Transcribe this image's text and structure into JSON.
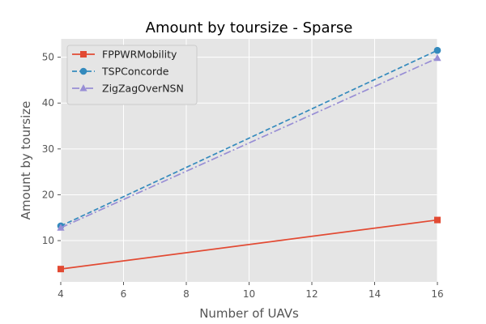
{
  "chart_data": {
    "type": "line",
    "title": "Amount by toursize - Sparse",
    "xlabel": "Number of UAVs",
    "ylabel": "Amount by toursize",
    "x": [
      4,
      16
    ],
    "xlim": [
      4,
      16
    ],
    "ylim": [
      1,
      54
    ],
    "xticks": [
      "4",
      "6",
      "8",
      "10",
      "12",
      "14",
      "16"
    ],
    "yticks": [
      "10",
      "20",
      "30",
      "40",
      "50"
    ],
    "grid": true,
    "legend_position": "top-left",
    "series": [
      {
        "name": "FPPWRMobility",
        "values": [
          3.8,
          14.5
        ],
        "color": "#E24A33",
        "marker": "square",
        "dash": "solid"
      },
      {
        "name": "TSPConcorde",
        "values": [
          13.2,
          51.5
        ],
        "color": "#348ABD",
        "marker": "circle",
        "dash": "dashed"
      },
      {
        "name": "ZigZagOverNSN",
        "values": [
          12.8,
          49.8
        ],
        "color": "#988ED5",
        "marker": "triangle-up",
        "dash": "dashdot"
      }
    ]
  }
}
